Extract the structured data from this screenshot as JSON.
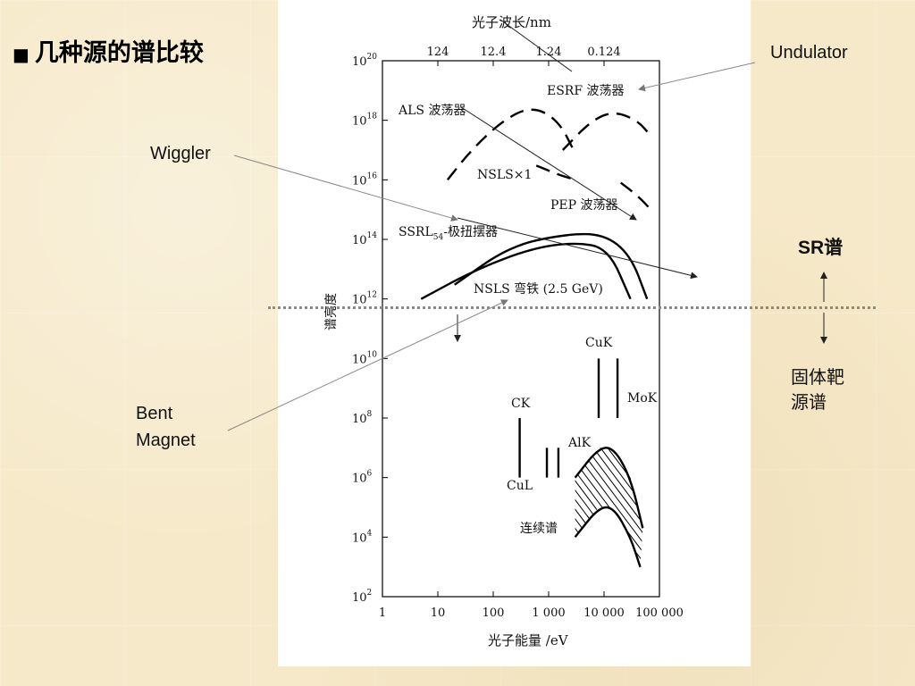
{
  "slide": {
    "title_bullet": "■",
    "title": "几种源的谱比较"
  },
  "labels": {
    "undulator": "Undulator",
    "wiggler": "Wiggler",
    "bent_line1": "Bent",
    "bent_line2": "Magnet",
    "sr": "SR谱",
    "solid_line1": "固体靶",
    "solid_line2": "源谱"
  },
  "chart_data": {
    "type": "line",
    "xscale": "log",
    "yscale": "log",
    "xlabel": "光子能量 /eV",
    "ylabel": "谱亮度",
    "top_axis_label": "光子波长/nm",
    "xlim": [
      1,
      100000
    ],
    "ylim": [
      100,
      1e+20
    ],
    "x_tick_labels": [
      "1",
      "10",
      "100",
      "1 000",
      "10 000",
      "100 000"
    ],
    "y_tick_labels": [
      "10^2",
      "10^4",
      "10^6",
      "10^8",
      "10^10",
      "10^12",
      "10^14",
      "10^16",
      "10^18",
      "10^20"
    ],
    "top_tick_labels": [
      "124",
      "12.4",
      "1.24",
      "0.124"
    ],
    "annotations": {
      "esrf": "ESRF 波荡器",
      "als": "ALS 波荡器",
      "nsls1": "NSLS×1",
      "pep": "PEP 波荡器",
      "ssrl_main": "SSRL",
      "ssrl_sub": "54",
      "ssrl_tail": "-极扭摆器",
      "nsls_bend": "NSLS 弯铁 (2.5 GeV)",
      "cuk": "CuK",
      "mok": "MoK",
      "ck": "CK",
      "cul": "CuL",
      "alk": "AlK",
      "continuum": "连续谱"
    },
    "series": [
      {
        "name": "ALS 波荡器",
        "style": "dashed",
        "x": [
          15,
          40,
          150,
          500,
          1500,
          3000
        ],
        "y": [
          1e+16,
          1e+17,
          1e+18,
          3e+18,
          1e+18,
          8e+16
        ]
      },
      {
        "name": "ESRF 波荡器",
        "style": "dashed",
        "x": [
          1800,
          6000,
          15000,
          40000,
          70000
        ],
        "y": [
          1e+17,
          1e+18,
          2e+18,
          1e+18,
          3e+17
        ]
      },
      {
        "name": "NSLS×1",
        "style": "dashed",
        "x": [
          600,
          1500,
          3000
        ],
        "y": [
          3e+16,
          1.5e+16,
          1e+16
        ]
      },
      {
        "name": "PEP 波荡器",
        "style": "dashed",
        "x": [
          20000,
          40000,
          70000
        ],
        "y": [
          8000000000000000.0,
          3000000000000000.0,
          1000000000000000.0
        ]
      },
      {
        "name": "SSRL54-极扭摆器",
        "style": "solid",
        "x": [
          20,
          200,
          2000,
          10000,
          30000,
          60000
        ],
        "y": [
          3000000000000.0,
          60000000000000.0,
          150000000000000.0,
          150000000000000.0,
          30000000000000.0,
          1000000000000.0
        ]
      },
      {
        "name": "NSLS 弯铁 (2.5 GeV)",
        "style": "solid",
        "x": [
          5,
          50,
          500,
          3000,
          12000,
          30000
        ],
        "y": [
          1000000000000.0,
          10000000000000.0,
          50000000000000.0,
          80000000000000.0,
          50000000000000.0,
          1000000000000.0
        ]
      },
      {
        "name": "连续谱 upper",
        "style": "solid",
        "x": [
          3000,
          8000,
          15000,
          30000,
          50000
        ],
        "y": [
          1000000.0,
          10000000.0,
          10000000.0,
          1000000.0,
          20000.0
        ]
      },
      {
        "name": "连续谱 lower",
        "style": "solid",
        "x": [
          3000,
          8000,
          15000,
          30000,
          45000
        ],
        "y": [
          10000.0,
          100000.0,
          100000.0,
          10000.0,
          1000.0
        ]
      }
    ],
    "lines": [
      {
        "name": "CK",
        "x": 300,
        "y_range": [
          1000000.0,
          100000000.0
        ]
      },
      {
        "name": "CuL",
        "x": 930,
        "y_range": [
          1000000.0,
          10000000.0
        ]
      },
      {
        "name": "AlK",
        "x": 1500,
        "y_range": [
          1000000.0,
          10000000.0
        ]
      },
      {
        "name": "CuK",
        "x": 8000,
        "y_range": [
          100000000.0,
          10000000000.0
        ]
      },
      {
        "name": "MoK",
        "x": 17500,
        "y_range": [
          100000000.0,
          10000000000.0
        ]
      }
    ]
  }
}
